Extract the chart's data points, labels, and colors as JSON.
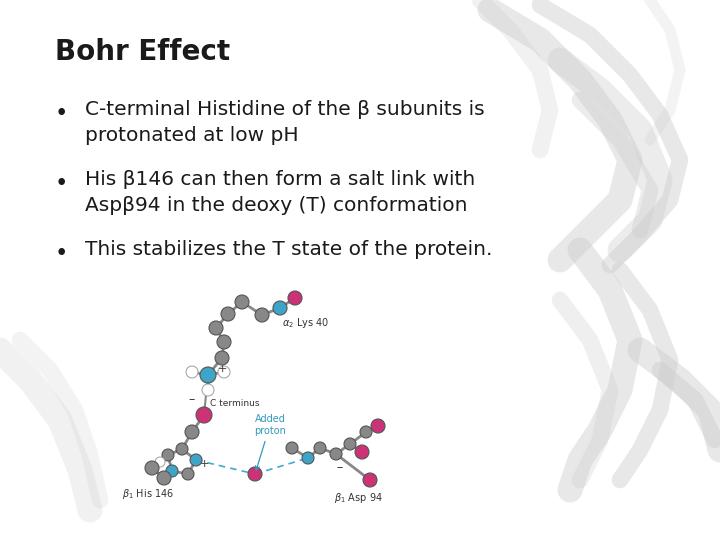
{
  "title": "Bohr Effect",
  "title_fontsize": 20,
  "bg_color": "#ffffff",
  "text_color": "#1a1a1a",
  "bullet_points": [
    [
      "C-terminal Histidine of the β subunits is",
      "protonated at low pH"
    ],
    [
      "His β146 can then form a salt link with",
      "Aspβ94 in the deoxy (T) conformation"
    ],
    [
      "This stabilizes the T state of the protein."
    ]
  ],
  "bullet_fontsize": 14.5,
  "gray_atom": "#888888",
  "teal_atom": "#3da6c8",
  "pink_atom": "#cc3377",
  "white_atom": "#ffffff",
  "bond_color": "#888888"
}
